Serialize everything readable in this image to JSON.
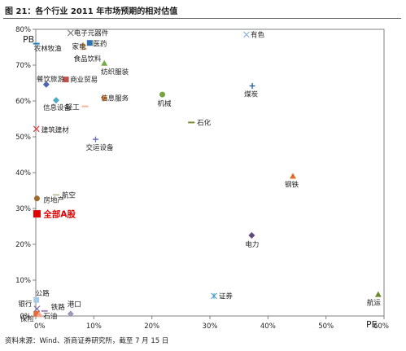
{
  "title": "图 21：各个行业 2011 年市场预期的相对估值",
  "source": "资料来源：Wind、浙商证券研究所，截至 7 月 15 日",
  "chart_data": {
    "type": "scatter",
    "xlabel": "PE",
    "ylabel": "PB",
    "xlim": [
      0,
      60
    ],
    "ylim": [
      0,
      80
    ],
    "xticks": [
      0,
      10,
      20,
      30,
      40,
      50,
      60
    ],
    "yticks": [
      0,
      10,
      20,
      30,
      40,
      50,
      60,
      70,
      80
    ],
    "xticklabels": [
      "0%",
      "10%",
      "20%",
      "30%",
      "40%",
      "50%",
      "60%"
    ],
    "yticklabels": [
      "0%",
      "10%",
      "20%",
      "30%",
      "40%",
      "50%",
      "60%",
      "70%",
      "80%"
    ],
    "grid": false,
    "legend": "none",
    "points": [
      {
        "label": "农林牧渔",
        "x": 0.1,
        "y": 76,
        "marker": "dash",
        "color": "#1f7fc0"
      },
      {
        "label": "电子元器件",
        "x": 6.0,
        "y": 79,
        "marker": "x",
        "color": "#7f7f7f"
      },
      {
        "label": "医药",
        "x": 9.3,
        "y": 76.2,
        "marker": "square",
        "color": "#2e74b5"
      },
      {
        "label": "家电",
        "x": 8.2,
        "y": 75.5,
        "marker": "plus",
        "color": "#e8a22a"
      },
      {
        "label": "食品饮料",
        "x": 8.2,
        "y": 74.5,
        "marker": "dash",
        "color": "#d9b38c"
      },
      {
        "label": "有色",
        "x": 36.3,
        "y": 78.5,
        "marker": "x",
        "color": "#8eb4e3"
      },
      {
        "label": "纺织服装",
        "x": 11.8,
        "y": 70.5,
        "marker": "triangle",
        "color": "#70ad47"
      },
      {
        "label": "餐饮旅游",
        "x": 1.8,
        "y": 64.6,
        "marker": "diamond",
        "color": "#4a66ac"
      },
      {
        "label": "商业贸易",
        "x": 5.2,
        "y": 66,
        "marker": "square",
        "color": "#c0504d"
      },
      {
        "label": "煤炭",
        "x": 37.3,
        "y": 64.2,
        "marker": "plus",
        "color": "#1f5fa0"
      },
      {
        "label": "信息设备",
        "x": 3.5,
        "y": 60.2,
        "marker": "diamond",
        "color": "#4bacc6"
      },
      {
        "label": "轻工",
        "x": 8.5,
        "y": 58.5,
        "marker": "dash",
        "color": "#f2b6a0"
      },
      {
        "label": "信息服务",
        "x": 11.8,
        "y": 60.8,
        "marker": "circle",
        "color": "#f79646"
      },
      {
        "label": "机械",
        "x": 21.8,
        "y": 61.8,
        "marker": "circle",
        "color": "#77a440"
      },
      {
        "label": "石化",
        "x": 26.8,
        "y": 54,
        "marker": "dash",
        "color": "#7a8a2a"
      },
      {
        "label": "建筑建材",
        "x": 0.1,
        "y": 52.2,
        "marker": "x",
        "color": "#e0383e"
      },
      {
        "label": "交运设备",
        "x": 10.3,
        "y": 49.3,
        "marker": "plus",
        "color": "#6868b0"
      },
      {
        "label": "钢铁",
        "x": 44.3,
        "y": 39,
        "marker": "triangle",
        "color": "#e36c2a"
      },
      {
        "label": "房地产",
        "x": 0.2,
        "y": 32.8,
        "marker": "circle",
        "color": "#9c6b30"
      },
      {
        "label": "航空",
        "x": 3.5,
        "y": 33.8,
        "marker": "dash",
        "color": "#c3c3a0"
      },
      {
        "label": "全部A股",
        "x": 0.2,
        "y": 28.5,
        "marker": "bigsquare",
        "color": "#e00000"
      },
      {
        "label": "电力",
        "x": 37.2,
        "y": 22.5,
        "marker": "diamond",
        "color": "#604a7b"
      },
      {
        "label": "证券",
        "x": 30.7,
        "y": 5.6,
        "marker": "star",
        "color": "#4aa0d0"
      },
      {
        "label": "航运",
        "x": 59,
        "y": 6,
        "marker": "triangle",
        "color": "#6a8a30"
      },
      {
        "label": "公路",
        "x": 0.1,
        "y": 4.5,
        "marker": "square",
        "color": "#a6cbe8"
      },
      {
        "label": "银行",
        "x": 0.2,
        "y": 2.0,
        "marker": "x",
        "color": "#7a6aa8"
      },
      {
        "label": "铁路",
        "x": 1.5,
        "y": 1.4,
        "marker": "dash",
        "color": "#a08ac0"
      },
      {
        "label": "港口",
        "x": 6.0,
        "y": 0.6,
        "marker": "diamond",
        "color": "#9a9ab8"
      },
      {
        "label": "保险",
        "x": 0.1,
        "y": 0.6,
        "marker": "square",
        "color": "#e36c3a"
      },
      {
        "label": "石油",
        "x": 0.6,
        "y": 0.4,
        "marker": "triangle",
        "color": "#f6a28a"
      }
    ]
  }
}
